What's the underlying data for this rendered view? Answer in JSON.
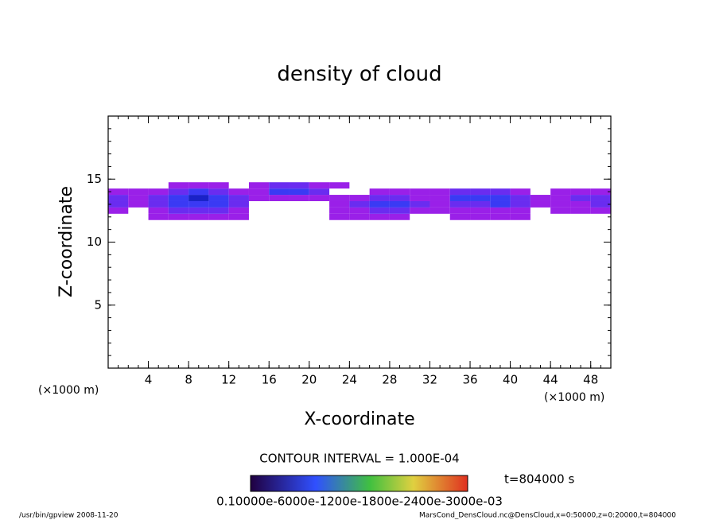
{
  "chart_data": {
    "type": "contour",
    "title": "density of cloud",
    "x_label": "X-coordinate",
    "y_label": "Z-coordinate",
    "x_unit_left": "(×1000 m)",
    "x_unit_right": "(×1000 m)",
    "xlim": [
      0,
      50
    ],
    "xticks": [
      4,
      8,
      12,
      16,
      20,
      24,
      28,
      32,
      36,
      40,
      44,
      48
    ],
    "ylim": [
      0,
      20
    ],
    "yticks": [
      5,
      10,
      15
    ],
    "x": [
      1,
      3,
      5,
      7,
      9,
      11,
      13,
      15,
      17,
      19,
      21,
      23,
      25,
      27,
      29,
      31,
      33,
      35,
      37,
      39,
      41,
      43,
      45,
      47,
      49
    ],
    "z": [
      12,
      12.5,
      13,
      13.5,
      14,
      14.5
    ],
    "density": [
      [
        null,
        null,
        0.0001,
        0.0001,
        0.0001,
        0.0001,
        0.0001,
        null,
        null,
        null,
        null,
        0.0001,
        0.0001,
        0.0001,
        0.0001,
        null,
        null,
        0.0001,
        0.0001,
        0.0001,
        0.0001,
        null,
        null,
        null,
        null
      ],
      [
        0.0001,
        null,
        0.0001,
        0.0002,
        0.0002,
        0.0002,
        0.0001,
        null,
        null,
        null,
        null,
        0.0001,
        0.0001,
        0.0002,
        0.0002,
        0.0001,
        0.0001,
        0.0001,
        0.0001,
        0.0001,
        0.0001,
        null,
        0.0001,
        0.0001,
        0.0001
      ],
      [
        0.0002,
        0.0001,
        0.0002,
        0.0003,
        0.0003,
        0.0003,
        0.0002,
        null,
        null,
        null,
        null,
        0.0001,
        0.0002,
        0.0003,
        0.0003,
        0.0002,
        0.0001,
        0.0002,
        0.0002,
        0.0003,
        0.0002,
        0.0001,
        0.0001,
        0.0001,
        0.0002
      ],
      [
        0.0002,
        0.0001,
        0.0002,
        0.0003,
        0.0004,
        0.0003,
        0.0002,
        0.0001,
        0.0001,
        0.0001,
        0.0001,
        0.0001,
        0.0001,
        0.0002,
        0.0002,
        0.0001,
        0.0001,
        0.0003,
        0.0003,
        0.0003,
        0.0002,
        0.0001,
        0.0001,
        0.0002,
        0.0002
      ],
      [
        0.0001,
        0.0001,
        0.0001,
        0.0002,
        0.0003,
        0.0002,
        0.0001,
        0.0001,
        0.0003,
        0.0003,
        0.0002,
        null,
        null,
        0.0001,
        0.0001,
        0.0001,
        0.0001,
        0.0002,
        0.0002,
        0.0002,
        0.0001,
        null,
        0.0001,
        0.0001,
        0.0001
      ],
      [
        null,
        null,
        null,
        0.0001,
        0.0001,
        0.0001,
        null,
        0.0001,
        0.0002,
        0.0002,
        0.0001,
        0.0001,
        null,
        null,
        null,
        null,
        null,
        null,
        null,
        null,
        null,
        null,
        null,
        null,
        null
      ]
    ],
    "colors": [
      "#9a20e8",
      "#6a2cf0",
      "#3a3af4",
      "#1a22c8"
    ],
    "contour_interval": "CONTOUR INTERVAL = 1.000E-04",
    "colorbar_label": "0.10000e-6000e-1200e-1800e-2400e-3000e-03",
    "time_label": "t=804000 s",
    "footer_left": "/usr/bin/gpview  2008-11-20",
    "footer_right": "MarsCond_DensCloud.nc@DensCloud,x=0:50000,z=0:20000,t=804000"
  }
}
